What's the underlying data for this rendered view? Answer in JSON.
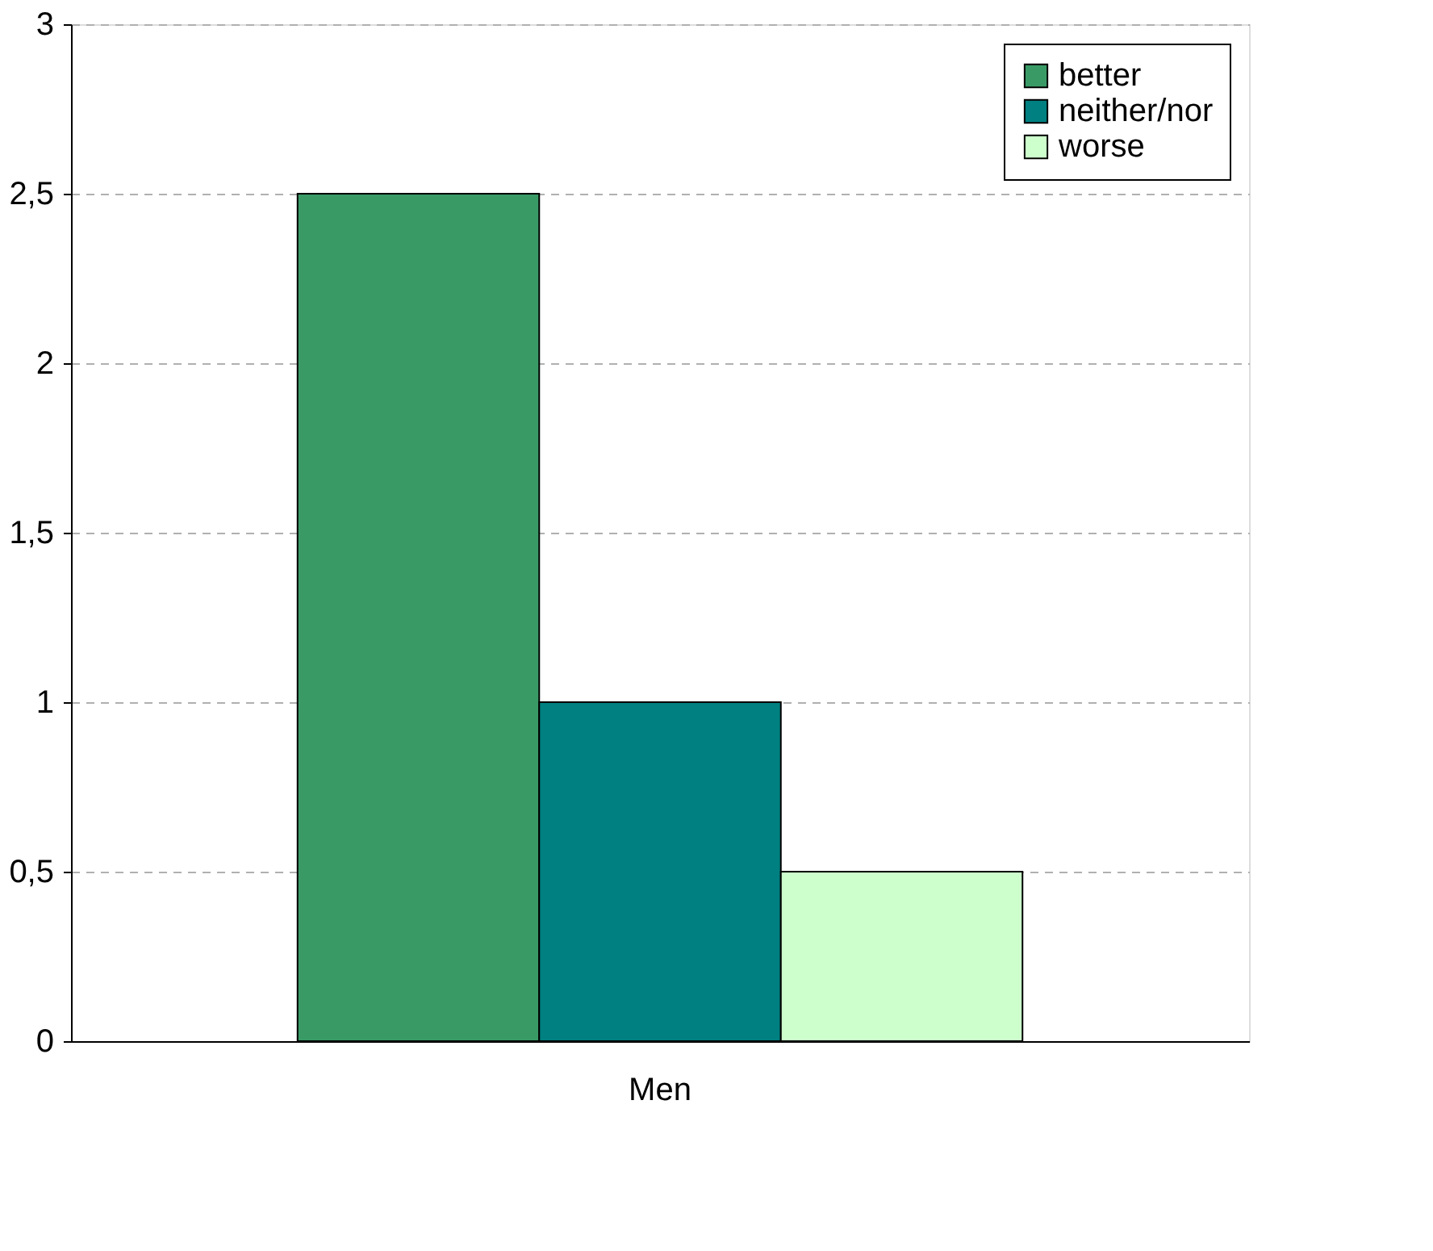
{
  "chart_data": {
    "type": "bar",
    "categories": [
      "Men"
    ],
    "series": [
      {
        "name": "better",
        "color": "#3a9a66",
        "values": [
          2.5
        ]
      },
      {
        "name": "neither/nor",
        "color": "#008080",
        "values": [
          1
        ]
      },
      {
        "name": "worse",
        "color": "#ccffcc",
        "values": [
          0.5
        ]
      }
    ],
    "ylim": [
      0,
      3
    ],
    "yticks": [
      0,
      {
        "value": 0.5,
        "label": "0,5"
      },
      1,
      {
        "value": 1.5,
        "label": "1,5"
      },
      2,
      {
        "value": 2.5,
        "label": "2,5"
      },
      3
    ],
    "grid": "y",
    "legend": "top right"
  }
}
